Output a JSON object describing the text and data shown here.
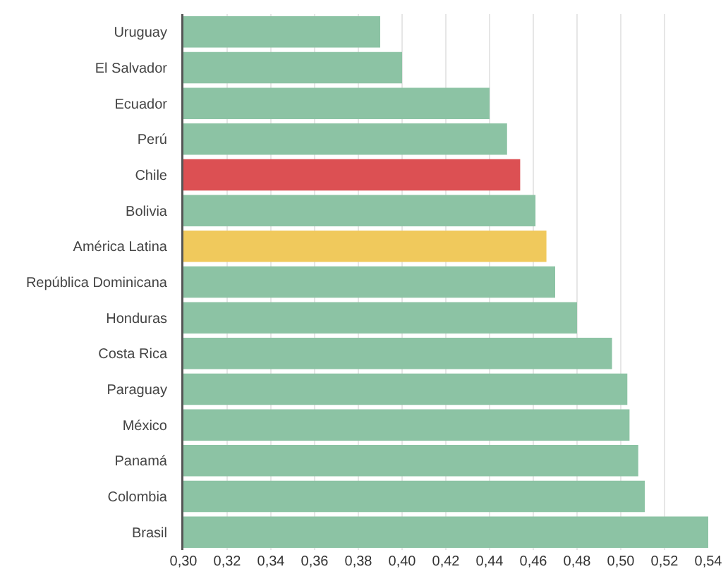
{
  "chart_data": {
    "type": "bar",
    "orientation": "horizontal",
    "categories": [
      "Uruguay",
      "El Salvador",
      "Ecuador",
      "Perú",
      "Chile",
      "Bolivia",
      "América Latina",
      "República Dominicana",
      "Honduras",
      "Costa Rica",
      "Paraguay",
      "México",
      "Panamá",
      "Colombia",
      "Brasil"
    ],
    "values": [
      0.39,
      0.4,
      0.44,
      0.448,
      0.454,
      0.461,
      0.466,
      0.47,
      0.48,
      0.496,
      0.503,
      0.504,
      0.508,
      0.511,
      0.54
    ],
    "colors": [
      "#8cc3a4",
      "#8cc3a4",
      "#8cc3a4",
      "#8cc3a4",
      "#dc5053",
      "#8cc3a4",
      "#f0c95c",
      "#8cc3a4",
      "#8cc3a4",
      "#8cc3a4",
      "#8cc3a4",
      "#8cc3a4",
      "#8cc3a4",
      "#8cc3a4",
      "#8cc3a4"
    ],
    "xlim": [
      0.3,
      0.54
    ],
    "xticks": [
      {
        "value": 0.3,
        "label": "0,30"
      },
      {
        "value": 0.32,
        "label": "0,32"
      },
      {
        "value": 0.34,
        "label": "0,34"
      },
      {
        "value": 0.36,
        "label": "0,36"
      },
      {
        "value": 0.38,
        "label": "0,38"
      },
      {
        "value": 0.4,
        "label": "0,40"
      },
      {
        "value": 0.42,
        "label": "0,42"
      },
      {
        "value": 0.44,
        "label": "0,44"
      },
      {
        "value": 0.46,
        "label": "0,46"
      },
      {
        "value": 0.48,
        "label": "0,48"
      },
      {
        "value": 0.5,
        "label": "0,50"
      },
      {
        "value": 0.52,
        "label": "0,52"
      },
      {
        "value": 0.54,
        "label": "0,54"
      }
    ],
    "grid": "x"
  }
}
